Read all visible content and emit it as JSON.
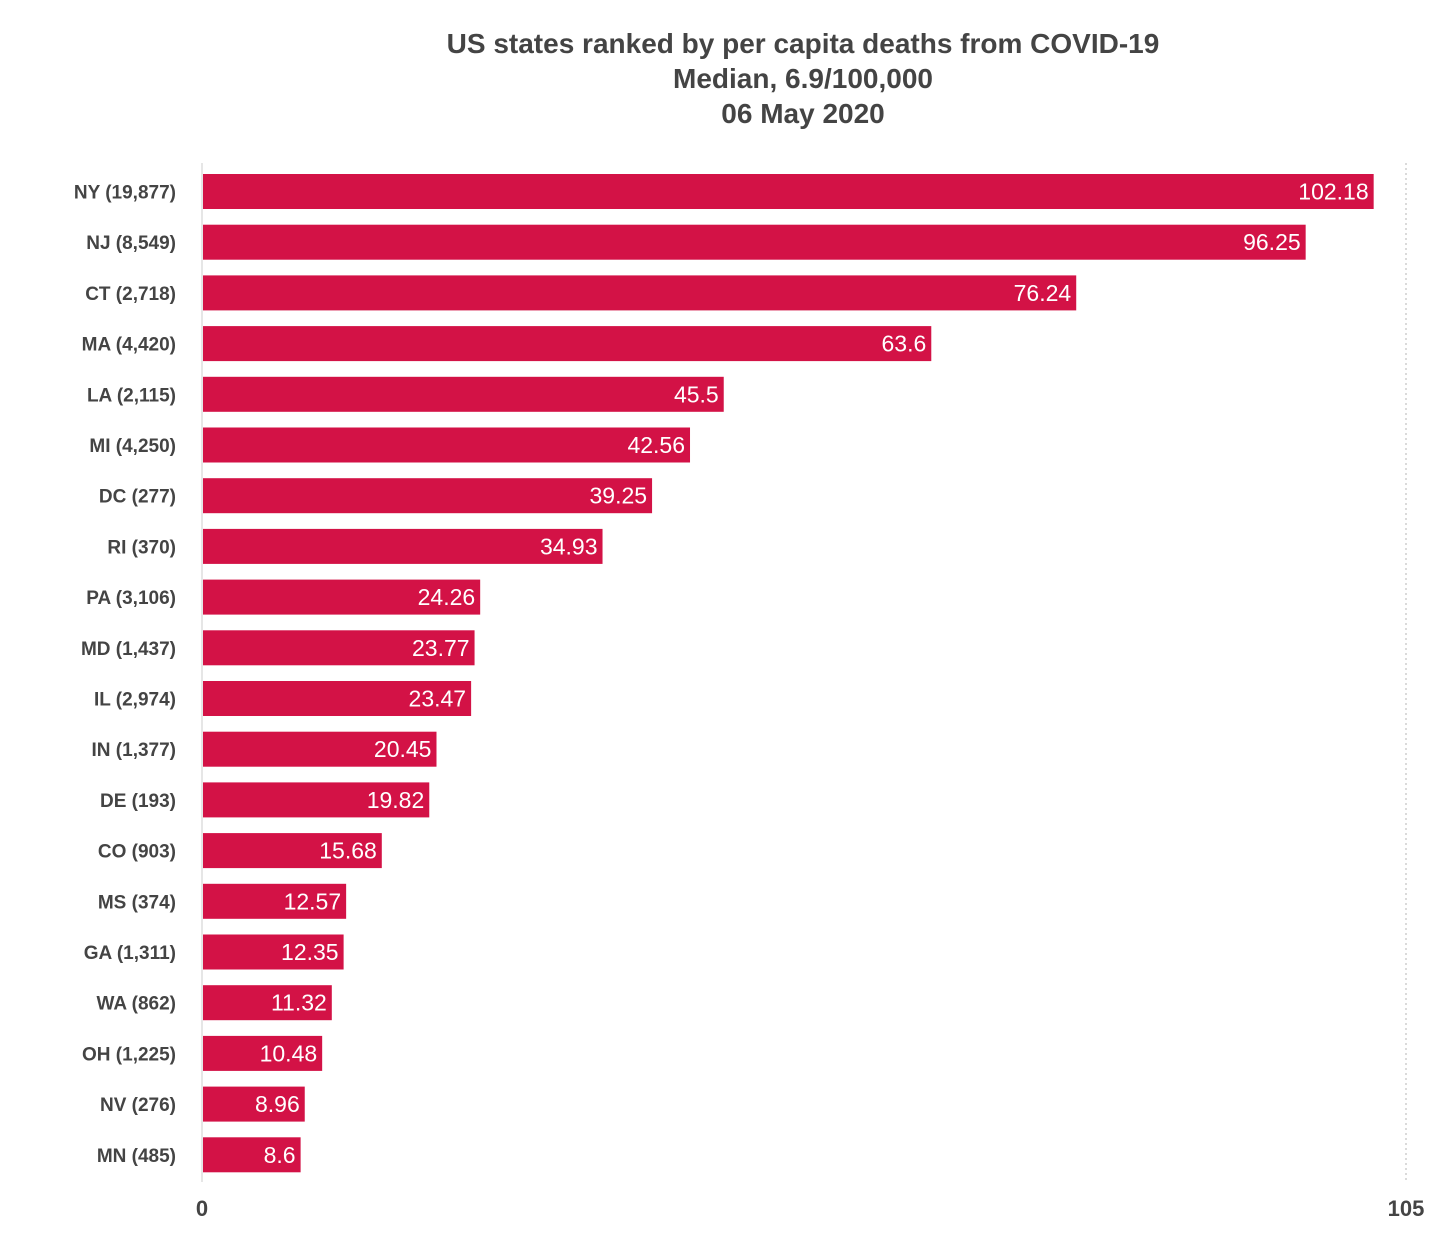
{
  "chart_data": {
    "type": "bar",
    "orientation": "horizontal",
    "title": "US states ranked by per capita deaths from COVID-19",
    "subtitle": "Median, 6.9/100,000",
    "date": "06 May 2020",
    "categories": [
      "NY (19,877)",
      "NJ (8,549)",
      "CT (2,718)",
      "MA (4,420)",
      "LA (2,115)",
      "MI (4,250)",
      "DC (277)",
      "RI (370)",
      "PA (3,106)",
      "MD (1,437)",
      "IL (2,974)",
      "IN (1,377)",
      "DE (193)",
      "CO (903)",
      "MS (374)",
      "GA (1,311)",
      "WA (862)",
      "OH (1,225)",
      "NV (276)",
      "MN (485)"
    ],
    "values": [
      102.18,
      96.25,
      76.24,
      63.6,
      45.5,
      42.56,
      39.25,
      34.93,
      24.26,
      23.77,
      23.47,
      20.45,
      19.82,
      15.68,
      12.57,
      12.35,
      11.32,
      10.48,
      8.96,
      8.6
    ],
    "value_labels": [
      "102.18",
      "96.25",
      "76.24",
      "63.6",
      "45.5",
      "42.56",
      "39.25",
      "34.93",
      "24.26",
      "23.77",
      "23.47",
      "20.45",
      "19.82",
      "15.68",
      "12.57",
      "12.35",
      "11.32",
      "10.48",
      "8.96",
      "8.6"
    ],
    "xlim": [
      0,
      105
    ],
    "x_ticks": [
      "0",
      "105"
    ],
    "grid": "dotted line at max",
    "legend": "none",
    "colors": {
      "bar": "#d31246",
      "bar_label": "#ffffff",
      "text": "#444444",
      "axis": "#cccccc"
    }
  }
}
